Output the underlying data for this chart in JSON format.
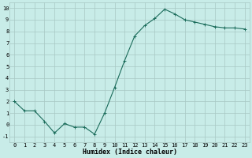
{
  "x": [
    0,
    1,
    2,
    3,
    4,
    5,
    6,
    7,
    8,
    9,
    10,
    11,
    12,
    13,
    14,
    15,
    16,
    17,
    18,
    19,
    20,
    21,
    22,
    23
  ],
  "y": [
    2.0,
    1.2,
    1.2,
    0.3,
    -0.7,
    0.1,
    -0.2,
    -0.2,
    -0.8,
    1.0,
    3.2,
    5.5,
    7.6,
    8.5,
    9.1,
    9.9,
    9.5,
    9.0,
    8.8,
    8.6,
    8.4,
    8.3,
    8.3,
    8.2
  ],
  "line_color": "#1a6b5a",
  "marker": "+",
  "marker_size": 3,
  "bg_color": "#c8ece8",
  "grid_color": "#a8c8c4",
  "xlabel": "Humidex (Indice chaleur)",
  "xlim": [
    -0.5,
    23.5
  ],
  "ylim": [
    -1.5,
    10.5
  ],
  "yticks": [
    -1,
    0,
    1,
    2,
    3,
    4,
    5,
    6,
    7,
    8,
    9,
    10
  ],
  "xticks": [
    0,
    1,
    2,
    3,
    4,
    5,
    6,
    7,
    8,
    9,
    10,
    11,
    12,
    13,
    14,
    15,
    16,
    17,
    18,
    19,
    20,
    21,
    22,
    23
  ],
  "xtick_labels": [
    "0",
    "1",
    "2",
    "3",
    "4",
    "5",
    "6",
    "7",
    "8",
    "9",
    "10",
    "11",
    "12",
    "13",
    "14",
    "15",
    "16",
    "17",
    "18",
    "19",
    "20",
    "21",
    "22",
    "23"
  ],
  "font_family": "monospace",
  "tick_fontsize": 5.0,
  "xlabel_fontsize": 6.0
}
